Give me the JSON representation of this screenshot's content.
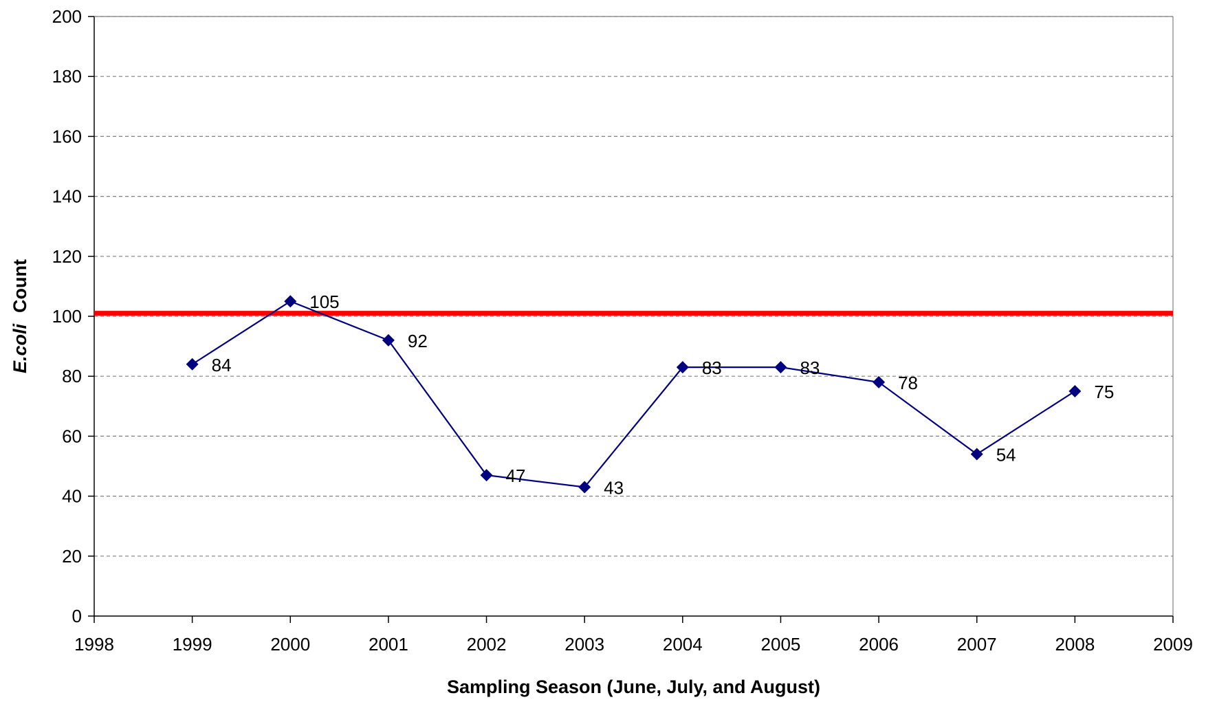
{
  "chart_data": {
    "type": "line",
    "title": "",
    "xlabel": "Sampling Season (June, July, and August)",
    "ylabel_italic": "E.coli",
    "ylabel_rest": "Count",
    "xlim": [
      1998,
      2009
    ],
    "ylim": [
      0,
      200
    ],
    "x_ticks": [
      1998,
      1999,
      2000,
      2001,
      2002,
      2003,
      2004,
      2005,
      2006,
      2007,
      2008,
      2009
    ],
    "y_ticks": [
      0,
      20,
      40,
      60,
      80,
      100,
      120,
      140,
      160,
      180,
      200
    ],
    "grid": "horizontal dashed",
    "series": [
      {
        "color": "#000080",
        "marker": "diamond",
        "x": [
          1999,
          2000,
          2001,
          2002,
          2003,
          2004,
          2005,
          2006,
          2007,
          2008
        ],
        "values": [
          84,
          105,
          92,
          47,
          43,
          83,
          83,
          78,
          54,
          75
        ],
        "labels": [
          "84",
          "105",
          "92",
          "47",
          "43",
          "83",
          "83",
          "78",
          "54",
          "75"
        ]
      }
    ],
    "reference_line": {
      "value": 101,
      "color": "#ff0000"
    }
  }
}
